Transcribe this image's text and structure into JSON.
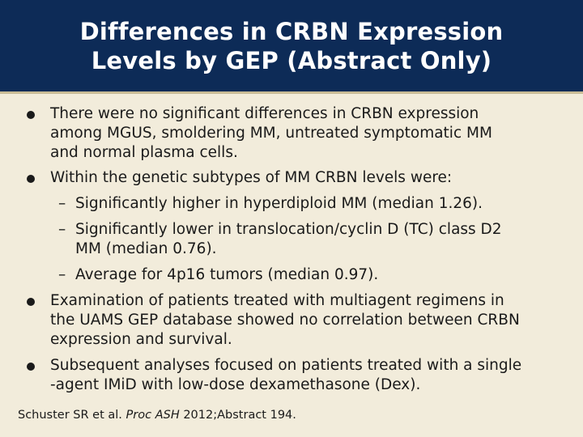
{
  "slide": {
    "title_line1": "Differences in CRBN Expression",
    "title_line2": "Levels by GEP (Abstract Only)"
  },
  "bullets": [
    {
      "lines": [
        "There were no significant differences in CRBN expression",
        "among MGUS, smoldering MM, untreated symptomatic MM",
        "and normal plasma cells."
      ]
    },
    {
      "lines": [
        "Within the genetic subtypes of MM CRBN levels were:"
      ],
      "sub_items": [
        {
          "dash": "–",
          "lines": [
            "Significantly higher in hyperdiploid MM (median 1.26)."
          ]
        },
        {
          "dash": "–",
          "lines": [
            "Significantly lower in translocation/cyclin D (TC) class D2",
            "MM (median 0.76)."
          ]
        },
        {
          "dash": "–",
          "lines": [
            "Average for 4p16 tumors (median 0.97)."
          ]
        }
      ]
    },
    {
      "lines": [
        "Examination of patients treated with multiagent regimens in",
        "the UAMS GEP database showed no correlation between CRBN",
        "expression and survival."
      ]
    },
    {
      "lines": [
        "Subsequent analyses focused on patients treated with a single",
        "-agent IMiD with low-dose dexamethasone (Dex)."
      ]
    }
  ],
  "citation": {
    "prefix": "Schuster SR et al. ",
    "journal": "Proc ASH",
    "suffix": " 2012;Abstract 194."
  }
}
